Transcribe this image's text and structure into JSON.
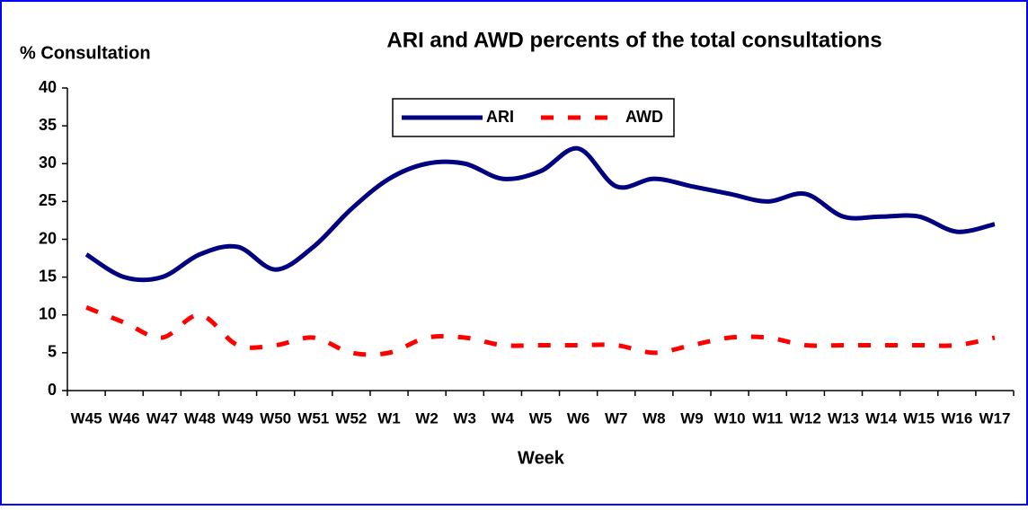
{
  "chart_data": {
    "type": "line",
    "title": "ARI and AWD percents of the total consultations",
    "y_label": "% Consultation",
    "x_label": "Week",
    "categories": [
      "W45",
      "W46",
      "W47",
      "W48",
      "W49",
      "W50",
      "W51",
      "W52",
      "W1",
      "W2",
      "W3",
      "W4",
      "W5",
      "W6",
      "W7",
      "W8",
      "W9",
      "W10",
      "W11",
      "W12",
      "W13",
      "W14",
      "W15",
      "W16",
      "W17"
    ],
    "series": [
      {
        "name": "ARI",
        "color": "#000080",
        "dash": false,
        "values": [
          18,
          15,
          15,
          18,
          19,
          16,
          19,
          24,
          28,
          30,
          30,
          28,
          29,
          32,
          27,
          28,
          27,
          26,
          25,
          26,
          23,
          23,
          23,
          21,
          22
        ]
      },
      {
        "name": "AWD",
        "color": "#ff0000",
        "dash": true,
        "values": [
          11,
          9,
          7,
          10,
          6,
          6,
          7,
          5,
          5,
          7,
          7,
          6,
          6,
          6,
          6,
          5,
          6,
          7,
          7,
          6,
          6,
          6,
          6,
          6,
          7
        ]
      }
    ],
    "ylim": [
      0,
      40
    ],
    "yticks": [
      0,
      5,
      10,
      15,
      20,
      25,
      30,
      35,
      40
    ],
    "legend": "top"
  }
}
